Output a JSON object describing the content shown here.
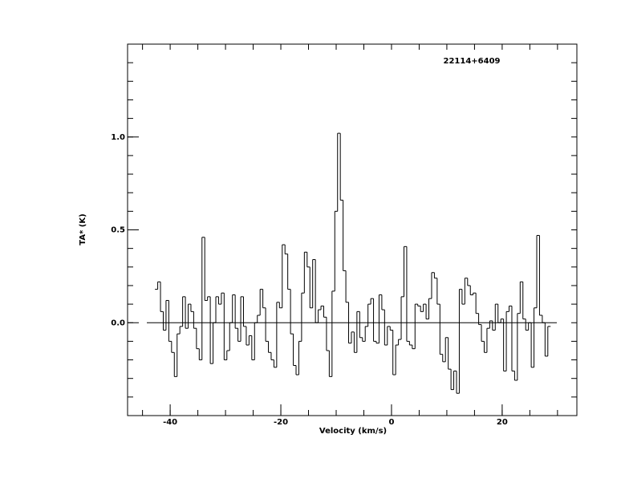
{
  "chart_data": {
    "type": "step",
    "annotation": "22114+6409",
    "xlabel": "Velocity (km/s)",
    "ylabel": "TA* (K)",
    "xlim": [
      -47.7,
      33.5
    ],
    "ylim": [
      -0.5,
      1.5
    ],
    "xticks": [
      -40,
      -20,
      0,
      20
    ],
    "minor_xticks": [
      -45,
      -40,
      -35,
      -30,
      -25,
      -20,
      -15,
      -10,
      -5,
      0,
      5,
      10,
      15,
      20,
      25,
      30
    ],
    "yticks": [
      {
        "value": 0,
        "label": "0.0"
      },
      {
        "value": 0.5,
        "label": "0.5"
      },
      {
        "value": 1,
        "label": "1.0"
      }
    ],
    "minor_yticks": [
      -0.4,
      -0.3,
      -0.2,
      -0.1,
      0,
      0.1,
      0.2,
      0.3,
      0.4,
      0.5,
      0.6,
      0.7,
      0.8,
      0.9,
      1,
      1.1,
      1.2,
      1.3,
      1.4
    ],
    "color": "#000000",
    "x": [
      -42.5,
      -42,
      -41.5,
      -41,
      -40.5,
      -40,
      -39.5,
      -39,
      -38.5,
      -38,
      -37.5,
      -37,
      -36.5,
      -36,
      -35.5,
      -35,
      -34.5,
      -34,
      -33.5,
      -33,
      -32.5,
      -32,
      -31.5,
      -31,
      -30.5,
      -30,
      -29.5,
      -29,
      -28.5,
      -28,
      -27.5,
      -27,
      -26.5,
      -26,
      -25.5,
      -25,
      -24.5,
      -24,
      -23.5,
      -23,
      -22.5,
      -22,
      -21.5,
      -21,
      -20.5,
      -20,
      -19.5,
      -19,
      -18.5,
      -18,
      -17.5,
      -17,
      -16.5,
      -16,
      -15.5,
      -15,
      -14.5,
      -14,
      -13.5,
      -13,
      -12.5,
      -12,
      -11.5,
      -11,
      -10.5,
      -10,
      -9.5,
      -9,
      -8.5,
      -8,
      -7.5,
      -7,
      -6.5,
      -6,
      -5.5,
      -5,
      -4.5,
      -4,
      -3.5,
      -3,
      -2.5,
      -2,
      -1.5,
      -1,
      -0.5,
      0,
      0.5,
      1,
      1.5,
      2,
      2.5,
      3,
      3.5,
      4,
      4.5,
      5,
      5.5,
      6,
      6.5,
      7,
      7.5,
      8,
      8.5,
      9,
      9.5,
      10,
      10.5,
      11,
      11.5,
      12,
      12.5,
      13,
      13.5,
      14,
      14.5,
      15,
      15.5,
      16,
      16.5,
      17,
      17.5,
      18,
      18.5,
      19,
      19.5,
      20,
      20.5,
      21,
      21.5,
      22,
      22.5,
      23,
      23.5,
      24,
      24.5,
      25,
      25.5,
      26,
      26.5,
      27,
      27.5,
      28,
      28.5
    ],
    "values": [
      0.18,
      0.22,
      0.06,
      -0.04,
      0.12,
      -0.1,
      -0.16,
      -0.29,
      -0.06,
      -0.02,
      0.14,
      -0.03,
      0.1,
      0.06,
      -0.03,
      -0.14,
      -0.2,
      0.46,
      0.12,
      0.14,
      -0.22,
      0.0,
      0.14,
      0.1,
      0.16,
      -0.2,
      -0.15,
      0.0,
      0.15,
      -0.03,
      -0.1,
      0.14,
      -0.02,
      -0.12,
      -0.07,
      -0.2,
      0.0,
      0.04,
      0.18,
      0.08,
      -0.1,
      -0.16,
      -0.2,
      -0.24,
      0.11,
      0.08,
      0.42,
      0.37,
      0.18,
      -0.06,
      -0.23,
      -0.28,
      -0.1,
      0.16,
      0.38,
      0.3,
      0.08,
      0.34,
      0.0,
      0.07,
      0.09,
      0.03,
      -0.15,
      -0.29,
      0.17,
      0.6,
      1.02,
      0.66,
      0.28,
      0.11,
      -0.11,
      -0.05,
      -0.16,
      0.06,
      -0.08,
      -0.1,
      -0.02,
      0.1,
      0.13,
      -0.1,
      -0.11,
      0.15,
      0.07,
      -0.12,
      -0.02,
      -0.04,
      -0.28,
      -0.12,
      -0.09,
      0.14,
      0.41,
      -0.1,
      -0.12,
      -0.14,
      0.1,
      0.09,
      0.06,
      0.1,
      0.02,
      0.13,
      0.27,
      0.24,
      0.1,
      -0.17,
      -0.21,
      -0.08,
      -0.25,
      -0.36,
      -0.26,
      -0.38,
      0.18,
      0.1,
      0.24,
      0.2,
      0.15,
      0.16,
      0.05,
      -0.01,
      -0.1,
      -0.16,
      -0.03,
      0.01,
      -0.04,
      0.1,
      0.0,
      0.02,
      -0.26,
      0.06,
      0.09,
      -0.26,
      -0.31,
      0.05,
      0.22,
      0.02,
      -0.04,
      0.0,
      -0.24,
      0.08,
      0.47,
      0.04,
      0.0,
      -0.18,
      -0.02
    ]
  }
}
